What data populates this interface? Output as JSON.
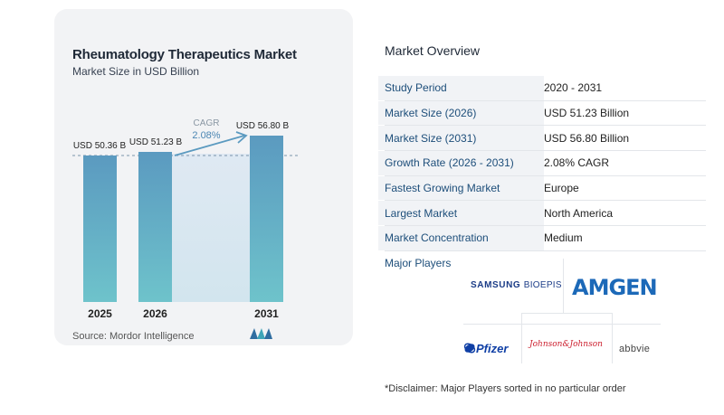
{
  "chart_data": {
    "type": "bar",
    "title": "Rheumatology Therapeutics Market",
    "subtitle": "Market Size in USD Billion",
    "categories": [
      "2025",
      "2026",
      "2031"
    ],
    "values": [
      50.36,
      51.23,
      56.8
    ],
    "data_labels": [
      "USD 50.36 B",
      "USD 51.23 B",
      "USD 56.80 B"
    ],
    "annotation": {
      "label": "CAGR",
      "value": "2.08%"
    },
    "colors": {
      "bar_top": "#5b9ac0",
      "bar_bottom": "#6ec3cb",
      "band": "#d7e6f1",
      "arrow": "#5b9ac0",
      "dashed_line": "#7a94ab"
    }
  },
  "source": "Source: Mordor Intelligence",
  "overview": {
    "title": "Market Overview",
    "rows": [
      {
        "label": "Study Period",
        "value": "2020 - 2031"
      },
      {
        "label": "Market Size (2026)",
        "value": "USD 51.23 Billion"
      },
      {
        "label": "Market Size (2031)",
        "value": "USD 56.80 Billion"
      },
      {
        "label": "Growth Rate (2026 - 2031)",
        "value": "2.08% CAGR"
      },
      {
        "label": "Fastest Growing Market",
        "value": "Europe"
      },
      {
        "label": "Largest Market",
        "value": "North America"
      },
      {
        "label": "Market Concentration",
        "value": "Medium"
      }
    ]
  },
  "players": {
    "title": "Major Players",
    "logos": {
      "samsung": "SAMSUNG",
      "samsung_sub": "BIOEPIS",
      "amgen": "AMGEN",
      "jj": "Johnson&Johnson",
      "pfizer": "Pfizer",
      "abbvie": "abbvie"
    }
  },
  "disclaimer": "*Disclaimer: Major Players sorted in no particular order"
}
